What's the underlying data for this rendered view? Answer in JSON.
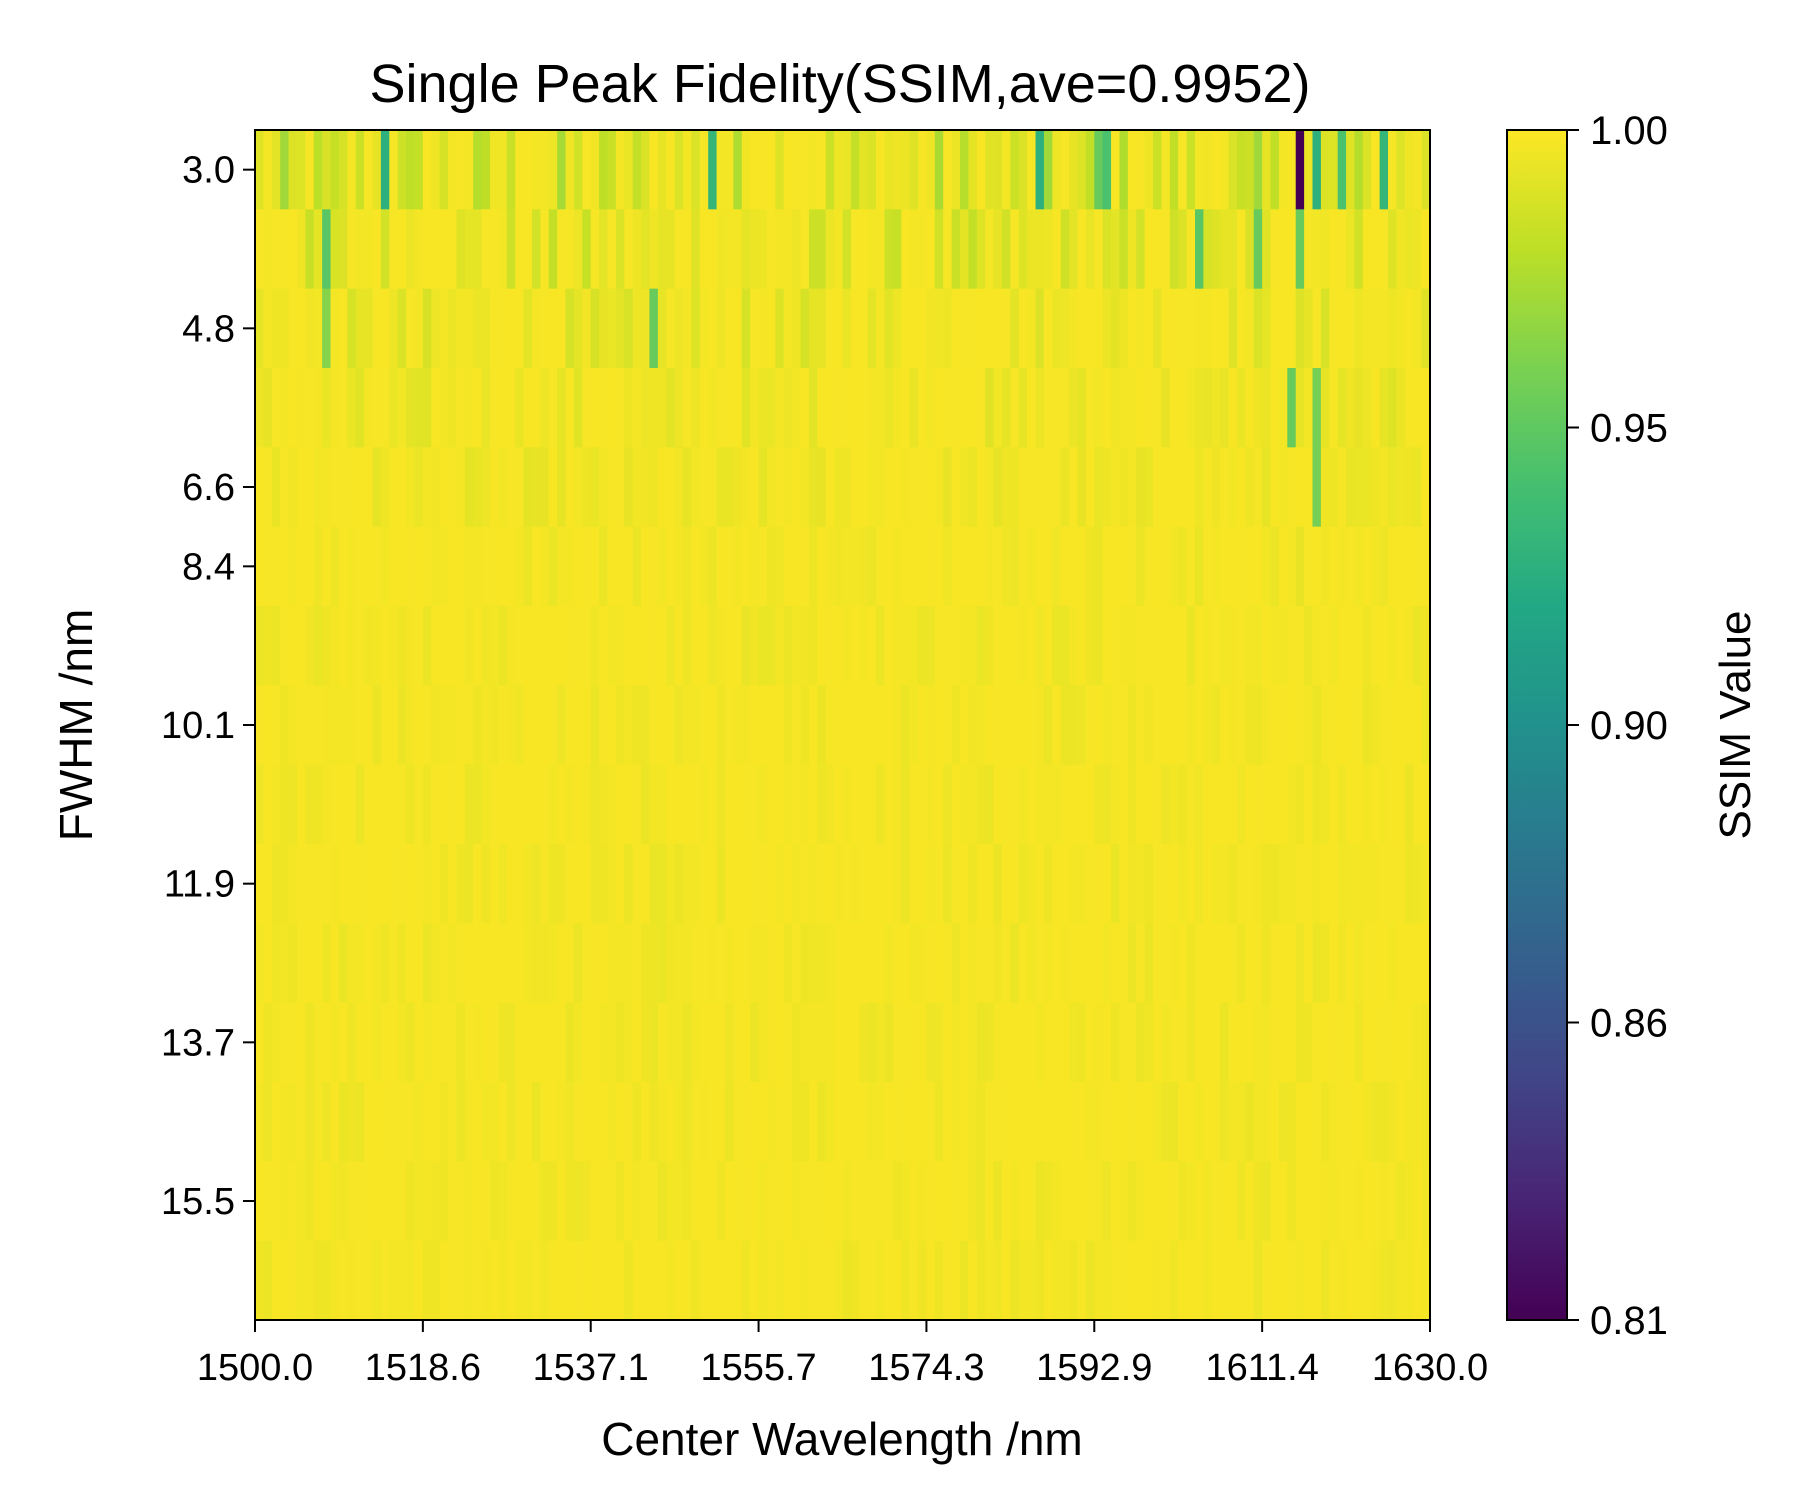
{
  "chart_data": {
    "type": "heatmap",
    "title": "Single Peak Fidelity(SSIM,ave=0.9952)",
    "xlabel": "Center Wavelength /nm",
    "ylabel": "FWHM /nm",
    "x_tick_labels": [
      "1500.0",
      "1518.6",
      "1537.1",
      "1555.7",
      "1574.3",
      "1592.9",
      "1611.4",
      "1630.0"
    ],
    "y_tick_labels": [
      "3.0",
      "4.8",
      "6.6",
      "8.4",
      "10.1",
      "11.9",
      "13.7",
      "15.5"
    ],
    "xlim": [
      1500.0,
      1630.0
    ],
    "rows": [
      3.0,
      4.0,
      4.8,
      5.7,
      6.6,
      7.5,
      8.4,
      9.3,
      10.1,
      11.0,
      11.9,
      12.8,
      13.7,
      14.6,
      15.5
    ],
    "num_columns": 140,
    "colorbar": {
      "label": "SSIM Value",
      "tick_labels": [
        "1.00",
        "0.95",
        "0.90",
        "0.86",
        "0.81"
      ],
      "range": [
        0.81,
        1.0
      ],
      "colormap": "viridis"
    },
    "average_ssim": 0.9952,
    "notable_low_cells": [
      {
        "fwhm": 3.0,
        "wavelength": 1615.5,
        "value": 0.81
      },
      {
        "fwhm": 3.0,
        "wavelength": 1514.0,
        "value": 0.93
      },
      {
        "fwhm": 3.0,
        "wavelength": 1551.0,
        "value": 0.935
      },
      {
        "fwhm": 3.0,
        "wavelength": 1586.5,
        "value": 0.93
      },
      {
        "fwhm": 3.0,
        "wavelength": 1594.0,
        "value": 0.945
      },
      {
        "fwhm": 3.0,
        "wavelength": 1593.0,
        "value": 0.955
      },
      {
        "fwhm": 3.0,
        "wavelength": 1617.5,
        "value": 0.93
      },
      {
        "fwhm": 3.0,
        "wavelength": 1625.0,
        "value": 0.935
      },
      {
        "fwhm": 3.0,
        "wavelength": 1620.5,
        "value": 0.945
      },
      {
        "fwhm": 4.0,
        "wavelength": 1508.0,
        "value": 0.95
      },
      {
        "fwhm": 4.0,
        "wavelength": 1604.0,
        "value": 0.95
      },
      {
        "fwhm": 4.0,
        "wavelength": 1610.5,
        "value": 0.955
      },
      {
        "fwhm": 4.0,
        "wavelength": 1615.5,
        "value": 0.955
      },
      {
        "fwhm": 4.8,
        "wavelength": 1544.5,
        "value": 0.955
      },
      {
        "fwhm": 4.8,
        "wavelength": 1507.5,
        "value": 0.965
      },
      {
        "fwhm": 5.7,
        "wavelength": 1614.5,
        "value": 0.955
      },
      {
        "fwhm": 5.7,
        "wavelength": 1617.5,
        "value": 0.96
      },
      {
        "fwhm": 6.6,
        "wavelength": 1617.0,
        "value": 0.96
      }
    ]
  }
}
